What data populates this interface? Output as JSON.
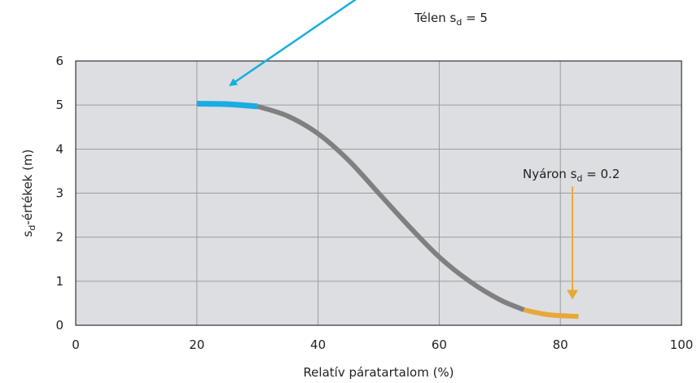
{
  "chart_data": {
    "type": "line",
    "title": "",
    "xlabel": "Relatív páratartalom  (%)",
    "ylabel_main": "s",
    "ylabel_sub": "d",
    "ylabel_rest": "-értékek (m)",
    "xlim": [
      0,
      100
    ],
    "ylim": [
      0,
      6
    ],
    "x_ticks": [
      0,
      20,
      40,
      60,
      80,
      100
    ],
    "y_ticks": [
      0,
      1,
      2,
      3,
      4,
      5,
      6
    ],
    "grid": true,
    "background": "#dcdee2",
    "series": [
      {
        "x": [
          20,
          25,
          30,
          35,
          40,
          45,
          50,
          55,
          60,
          65,
          70,
          74,
          78,
          83
        ],
        "y": [
          5.03,
          5.02,
          4.97,
          4.75,
          4.35,
          3.75,
          3.0,
          2.25,
          1.55,
          1.0,
          0.58,
          0.35,
          0.24,
          0.2
        ]
      }
    ],
    "segment_colors": {
      "winter": "#19ade0",
      "main": "#808080",
      "summer": "#e8a838"
    },
    "segments": {
      "winter_x": [
        20,
        30
      ],
      "summer_x": [
        74,
        83
      ]
    },
    "annotations": [
      {
        "text_main": "Télen s",
        "text_sub": "d",
        "text_rest": " = 5",
        "color": "#19ade0",
        "arrow_from": [
          50.5,
          7.8
        ],
        "arrow_to": [
          25.5,
          5.45
        ]
      },
      {
        "text_main": "Nyáron s",
        "text_sub": "d",
        "text_rest": " = 0.2",
        "color": "#e8a838",
        "arrow_from": [
          82,
          3.15
        ],
        "arrow_to": [
          82,
          0.62
        ]
      }
    ]
  }
}
